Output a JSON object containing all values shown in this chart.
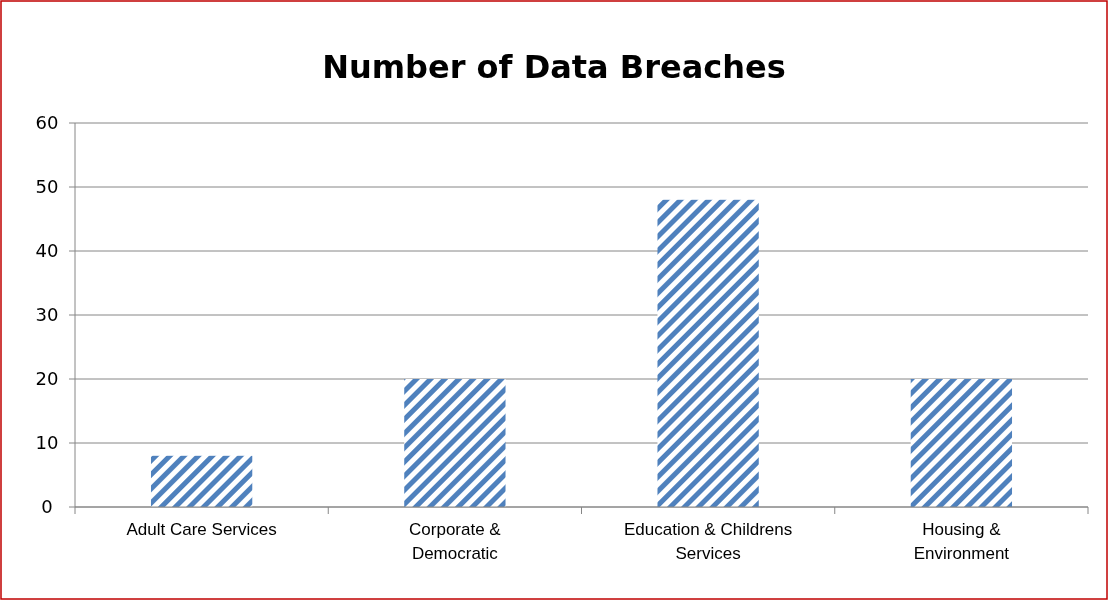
{
  "chart_data": {
    "type": "bar",
    "title": "Number of Data Breaches",
    "categories": [
      "Adult Care Services",
      "Corporate & Democratic",
      "Education & Childrens Services",
      "Housing & Environment"
    ],
    "values": [
      8,
      20,
      48,
      20
    ],
    "color": "#4f81bd",
    "ylim": [
      0,
      60
    ],
    "yticks": [
      0,
      10,
      20,
      30,
      40,
      50,
      60
    ],
    "grid": "y"
  }
}
